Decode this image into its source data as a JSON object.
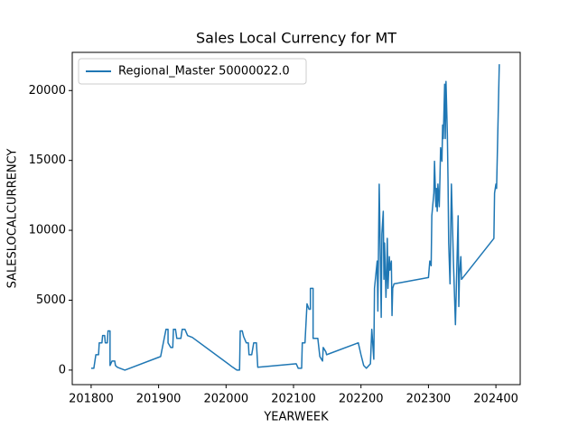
{
  "chart_data": {
    "type": "line",
    "title": "Sales Local Currency for MT",
    "x_label": "YEARWEEK",
    "y_label": "SALESLOCALCURRENCY",
    "xlim": [
      201772,
      202436
    ],
    "ylim": [
      -1040,
      22730
    ],
    "xticks": [
      201800,
      201900,
      202000,
      202100,
      202200,
      202300,
      202400
    ],
    "yticks": [
      0,
      5000,
      10000,
      15000,
      20000
    ],
    "legend": "upper left",
    "grid": false,
    "x": [
      201800,
      201804,
      201807,
      201811,
      201812,
      201816,
      201817,
      201820,
      201821,
      201824,
      201825,
      201828,
      201828,
      201831,
      201835,
      201836,
      201839,
      201850,
      201903,
      201907,
      201911,
      201914,
      201914,
      201918,
      201921,
      201922,
      201925,
      201927,
      201933,
      201935,
      201939,
      201943,
      201950,
      202010,
      202016,
      202020,
      202021,
      202024,
      202026,
      202030,
      202033,
      202034,
      202038,
      202041,
      202045,
      202047,
      202104,
      202107,
      202112,
      202113,
      202117,
      202120,
      202123,
      202125,
      202125,
      202129,
      202129,
      202136,
      202139,
      202143,
      202144,
      202148,
      202149,
      202196,
      202200,
      202204,
      202208,
      202214,
      202216,
      202219,
      202220,
      202224,
      202225,
      202227,
      202229,
      202230,
      202231,
      202233,
      202234,
      202235,
      202237,
      202238,
      202239,
      202240,
      202242,
      202243,
      202245,
      202246,
      202247,
      202249,
      202300,
      202302,
      202304,
      202305,
      202308,
      202309,
      202311,
      202312,
      202313,
      202314,
      202316,
      202317,
      202318,
      202320,
      202321,
      202322,
      202324,
      202325,
      202326,
      202328,
      202329,
      202330,
      202332,
      202334,
      202337,
      202340,
      202342,
      202344,
      202345,
      202346,
      202348,
      202349,
      202397,
      202398,
      202400,
      202401,
      202405
    ],
    "series": [
      {
        "name": "Regional_Master 50000022.0",
        "color": "#1f77b4",
        "values": [
          130,
          130,
          1100,
          1100,
          1950,
          1950,
          2470,
          2470,
          1950,
          1950,
          2800,
          2800,
          330,
          650,
          650,
          330,
          200,
          0,
          970,
          1950,
          2920,
          2920,
          1950,
          1620,
          1620,
          2920,
          2920,
          2270,
          2270,
          2920,
          2920,
          2470,
          2340,
          200,
          0,
          0,
          2800,
          2800,
          2400,
          1950,
          1950,
          1100,
          1100,
          1950,
          1950,
          200,
          450,
          130,
          130,
          1950,
          1950,
          4740,
          4350,
          4350,
          5850,
          5850,
          2270,
          2270,
          970,
          650,
          1620,
          1300,
          1100,
          1950,
          1100,
          330,
          130,
          450,
          2920,
          780,
          5850,
          7800,
          4220,
          13300,
          7150,
          3770,
          9740,
          11360,
          6490,
          9090,
          5200,
          6820,
          9420,
          5850,
          8120,
          7150,
          7800,
          3900,
          5850,
          6170,
          6620,
          7800,
          7470,
          11040,
          12660,
          14940,
          11690,
          12990,
          11360,
          13310,
          11690,
          13640,
          15910,
          14940,
          17530,
          16560,
          20450,
          16560,
          20650,
          16880,
          13640,
          9090,
          6170,
          13310,
          7800,
          3250,
          7150,
          11040,
          4550,
          6820,
          8120,
          6490,
          9420,
          12660,
          13310,
          12990,
          21880
        ]
      }
    ]
  }
}
